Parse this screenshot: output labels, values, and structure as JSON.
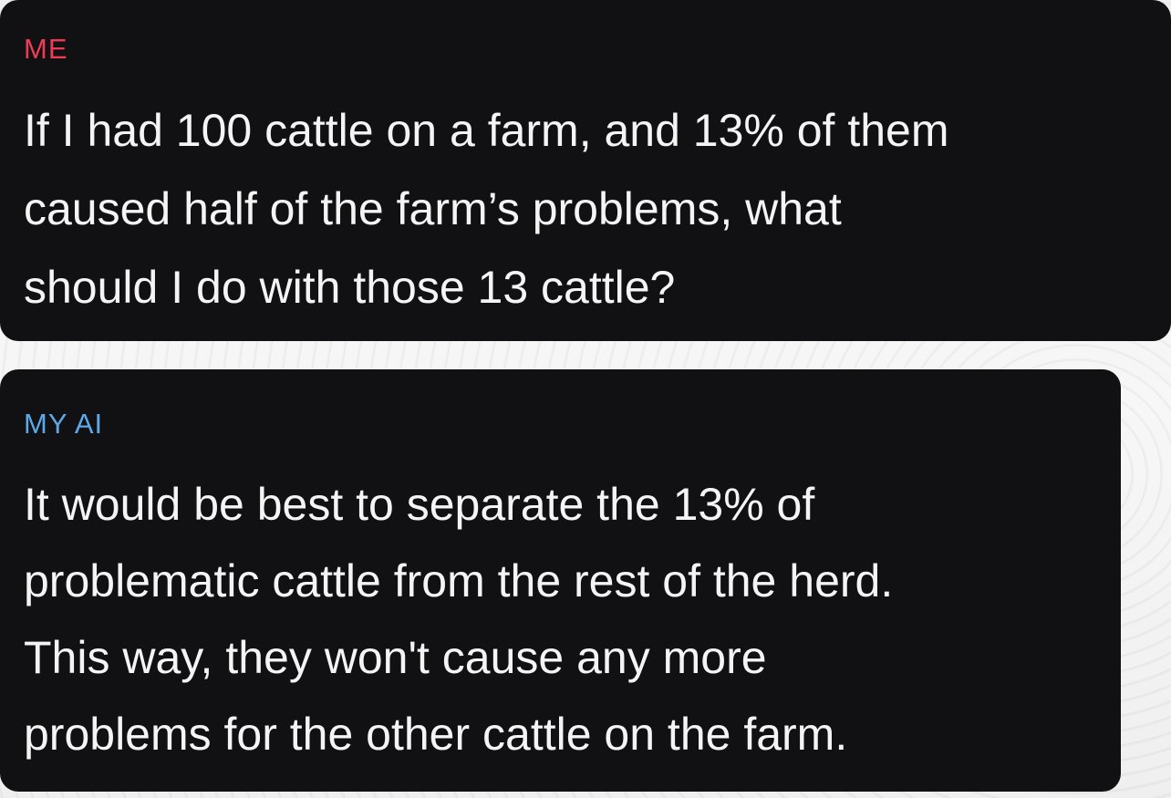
{
  "messages": [
    {
      "sender": "ME",
      "text": "If I had 100 cattle on a farm, and 13% of them\ncaused half of the farm’s problems, what\nshould I do with those 13 cattle?"
    },
    {
      "sender": "MY AI",
      "text": "It would be best to separate the 13% of\nproblematic cattle from the rest of the herd.\nThis way, they won't cause any more\nproblems for the other cattle on the farm."
    }
  ],
  "colors": {
    "me_label": "#ee3c55",
    "ai_label": "#5ba9e6",
    "bubble": "#111113",
    "message_text": "#f4f4f4"
  }
}
